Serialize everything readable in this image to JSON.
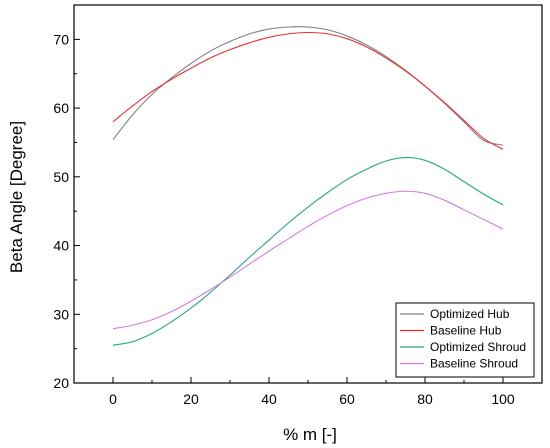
{
  "chart_data": {
    "type": "line",
    "title": "",
    "xlabel": "% m [-]",
    "ylabel": "Beta Angle [Degree]",
    "xlim": [
      -10,
      110
    ],
    "ylim": [
      20,
      75
    ],
    "x_ticks": [
      0,
      20,
      40,
      60,
      80,
      100
    ],
    "y_ticks": [
      20,
      30,
      40,
      50,
      60,
      70
    ],
    "grid": false,
    "legend_position": "bottom-right",
    "series": [
      {
        "name": "Optimized Hub",
        "color": "#808080",
        "x": [
          0,
          5,
          10,
          15,
          20,
          25,
          30,
          35,
          40,
          45,
          50,
          55,
          60,
          65,
          70,
          75,
          80,
          85,
          90,
          95,
          100
        ],
        "y": [
          55.4,
          59.0,
          62.0,
          64.4,
          66.5,
          68.3,
          69.7,
          70.8,
          71.5,
          71.8,
          71.8,
          71.4,
          70.5,
          69.2,
          67.5,
          65.5,
          63.2,
          60.7,
          58.0,
          55.3,
          54.6
        ]
      },
      {
        "name": "Baseline Hub",
        "color": "#e8312f",
        "x": [
          0,
          5,
          10,
          15,
          20,
          25,
          30,
          35,
          40,
          45,
          50,
          55,
          60,
          65,
          70,
          75,
          80,
          85,
          90,
          95,
          100
        ],
        "y": [
          58.0,
          60.3,
          62.4,
          64.2,
          65.8,
          67.3,
          68.5,
          69.5,
          70.3,
          70.8,
          71.0,
          70.8,
          70.1,
          68.9,
          67.3,
          65.4,
          63.2,
          60.8,
          58.2,
          55.6,
          54.0
        ]
      },
      {
        "name": "Optimized Shroud",
        "color": "#22a884",
        "x": [
          0,
          5,
          10,
          15,
          20,
          25,
          30,
          35,
          40,
          45,
          50,
          55,
          60,
          65,
          70,
          75,
          80,
          85,
          90,
          95,
          100
        ],
        "y": [
          25.5,
          26.0,
          27.2,
          28.9,
          30.9,
          33.2,
          35.7,
          38.3,
          40.8,
          43.3,
          45.6,
          47.7,
          49.6,
          51.1,
          52.3,
          52.8,
          52.4,
          51.1,
          49.3,
          47.5,
          45.9
        ]
      },
      {
        "name": "Baseline Shroud",
        "color": "#d67ae6",
        "x": [
          0,
          5,
          10,
          15,
          20,
          25,
          30,
          35,
          40,
          45,
          50,
          55,
          60,
          65,
          70,
          75,
          80,
          85,
          90,
          95,
          100
        ],
        "y": [
          27.9,
          28.4,
          29.2,
          30.4,
          31.9,
          33.6,
          35.4,
          37.3,
          39.2,
          41.0,
          42.8,
          44.4,
          45.8,
          46.9,
          47.6,
          47.9,
          47.6,
          46.6,
          45.2,
          43.8,
          42.4
        ]
      }
    ]
  }
}
